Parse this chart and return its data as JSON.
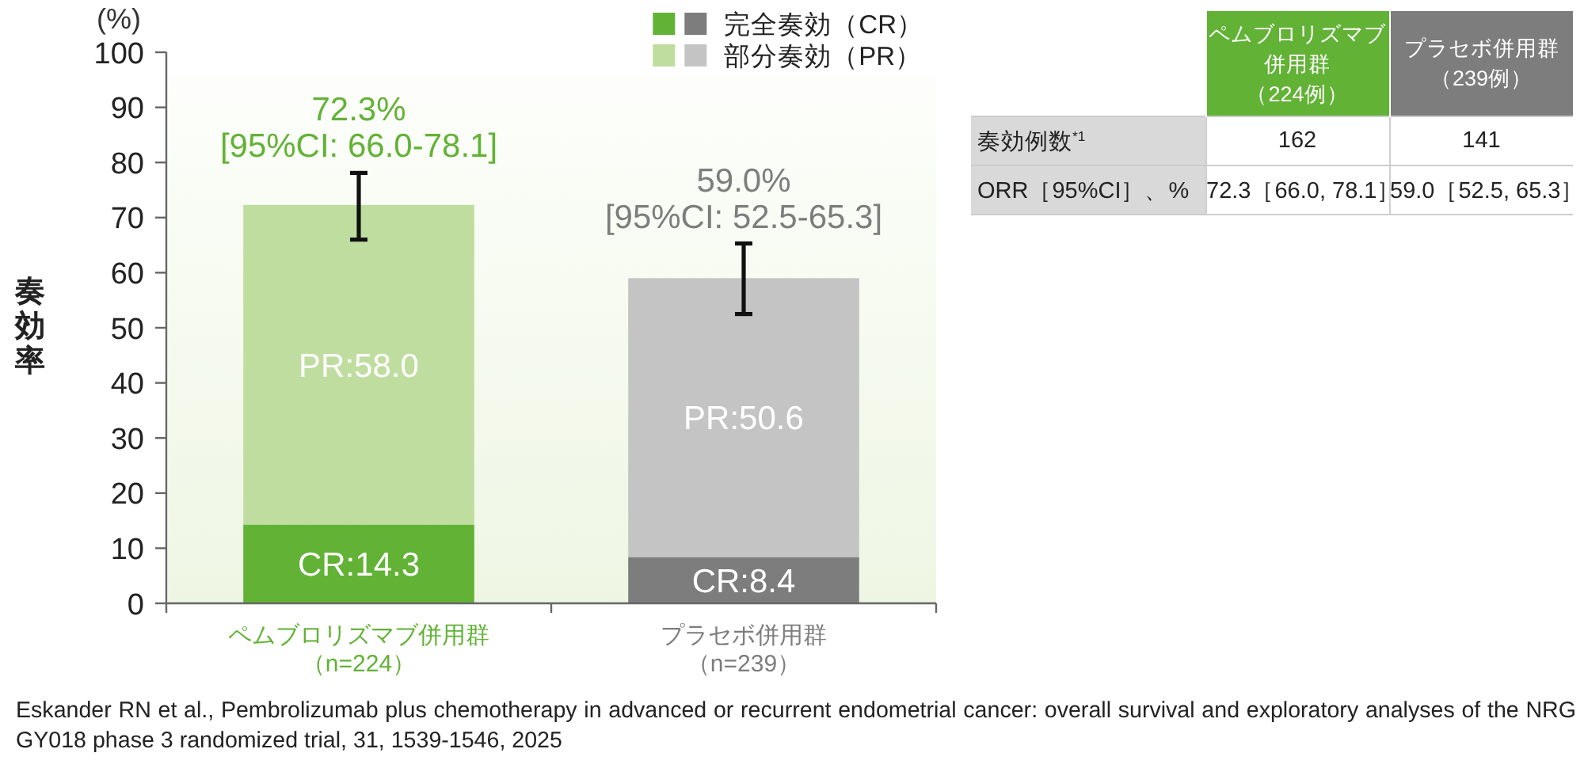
{
  "chart_data": [
    {
      "type": "bar",
      "stacked": true,
      "ylabel": "奏効率",
      "ylim": [
        0,
        100
      ],
      "yticks": [
        0,
        10,
        20,
        30,
        40,
        50,
        60,
        70,
        80,
        90,
        100
      ],
      "legend": "top right",
      "categories": [
        "ペムブロリズマブ併用群（n=224）",
        "プラセボ併用群（n=239）"
      ],
      "series": [
        {
          "name": "完全奏効（CR）",
          "colors": [
            "#62b236",
            "#7d7d7d"
          ],
          "values": [
            14.3,
            8.4
          ],
          "value_labels": [
            "CR:14.3",
            "CR:8.4"
          ]
        },
        {
          "name": "部分奏効（PR）",
          "colors": [
            "#bfdd9f",
            "#c4c4c4"
          ],
          "values": [
            58.0,
            50.6
          ],
          "value_labels": [
            "PR:58.0",
            "PR:50.6"
          ],
          "errors": [
            [
              66.0,
              78.1
            ],
            [
              52.5,
              65.3
            ]
          ]
        }
      ],
      "totals": [
        "72.3%",
        "59.0%"
      ],
      "annotations": [
        {
          "text": "[95%CI: 66.0-78.1]",
          "x": "ペムブロリズマブ併用群（n=224）",
          "y": 78.1
        },
        {
          "text": "[95%CI: 52.5-65.3]",
          "x": "プラセボ併用群（n=239）",
          "y": 65.3
        },
        "(%)",
        "Eskander RN et al., Pembrolizumab plus chemotherapy in advanced or recurrent endometrial cancer: overall survival and exploratory analyses of the NRG GY018 phase 3 randomized trial, 31, 1539-1546, 2025"
      ]
    },
    {
      "type": "other",
      "annotations": [
        "ペムブロリズマブ併用群（224例）",
        "プラセボ併用群（239例）",
        "奏効例数$^{*1}$",
        "162",
        "141",
        "ORR［95%CI］、%",
        "72.3［66.0, 78.1］",
        "59.0［52.5, 65.3］"
      ]
    }
  ]
}
